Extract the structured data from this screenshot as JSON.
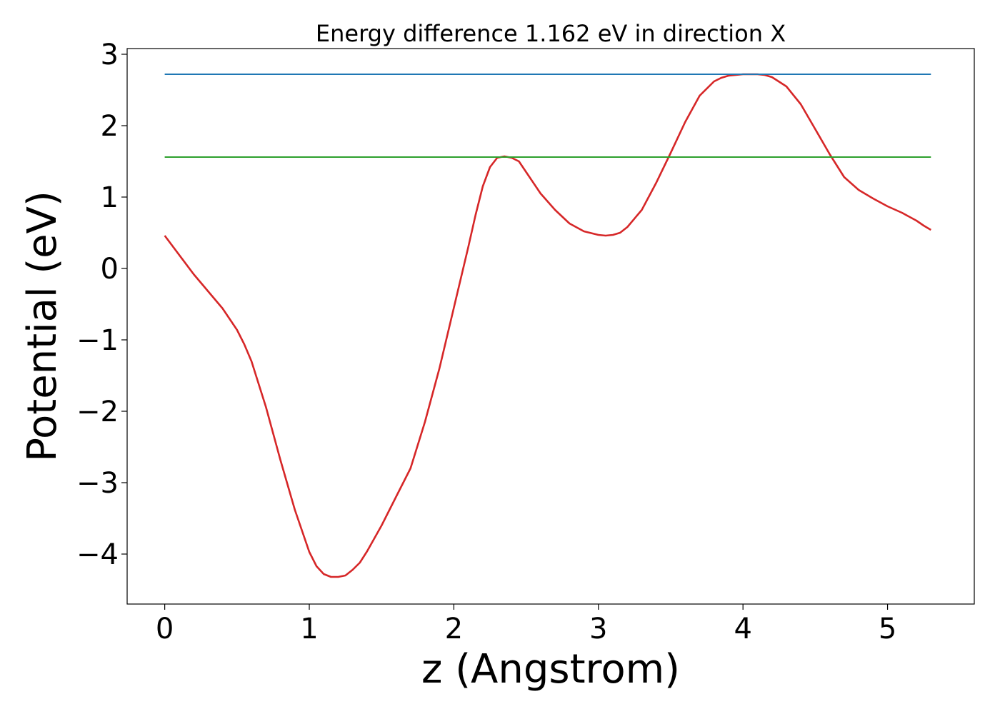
{
  "chart_data": {
    "type": "line",
    "title": "Energy difference 1.162 eV in direction X",
    "xlabel": "z (Angstrom)",
    "ylabel": "Potential (eV)",
    "xlim": [
      -0.26,
      5.6
    ],
    "ylim": [
      -4.7,
      3.08
    ],
    "xticks": [
      0,
      1,
      2,
      3,
      4,
      5
    ],
    "yticks": [
      3,
      2,
      1,
      0,
      -1,
      -2,
      -3,
      -4
    ],
    "xtick_labels": [
      "0",
      "1",
      "2",
      "3",
      "4",
      "5"
    ],
    "ytick_labels": [
      "3",
      "2",
      "1",
      "0",
      "−1",
      "−2",
      "−3",
      "−4"
    ],
    "grid": false,
    "legend": "none",
    "series": [
      {
        "color": "#d62728",
        "x": [
          0,
          0.2,
          0.4,
          0.5,
          0.55,
          0.6,
          0.7,
          0.8,
          0.9,
          1.0,
          1.05,
          1.1,
          1.15,
          1.2,
          1.25,
          1.3,
          1.35,
          1.4,
          1.5,
          1.6,
          1.7,
          1.8,
          1.9,
          2.0,
          2.1,
          2.15,
          2.2,
          2.25,
          2.3,
          2.35,
          2.4,
          2.45,
          2.5,
          2.6,
          2.7,
          2.8,
          2.9,
          3.0,
          3.05,
          3.1,
          3.15,
          3.2,
          3.3,
          3.4,
          3.5,
          3.6,
          3.7,
          3.8,
          3.85,
          3.9,
          3.95,
          4.0,
          4.05,
          4.1,
          4.15,
          4.2,
          4.3,
          4.4,
          4.5,
          4.6,
          4.7,
          4.8,
          4.9,
          5.0,
          5.1,
          5.2,
          5.25,
          5.3
        ],
        "y": [
          0.46,
          -0.08,
          -0.56,
          -0.86,
          -1.06,
          -1.3,
          -1.94,
          -2.68,
          -3.38,
          -3.97,
          -4.17,
          -4.28,
          -4.32,
          -4.32,
          -4.3,
          -4.22,
          -4.12,
          -3.96,
          -3.6,
          -3.2,
          -2.8,
          -2.15,
          -1.4,
          -0.55,
          0.3,
          0.75,
          1.15,
          1.42,
          1.55,
          1.57,
          1.55,
          1.5,
          1.35,
          1.05,
          0.82,
          0.63,
          0.52,
          0.47,
          0.46,
          0.47,
          0.5,
          0.58,
          0.82,
          1.2,
          1.62,
          2.05,
          2.42,
          2.62,
          2.67,
          2.7,
          2.71,
          2.72,
          2.72,
          2.72,
          2.71,
          2.68,
          2.55,
          2.3,
          1.95,
          1.6,
          1.28,
          1.1,
          0.98,
          0.87,
          0.78,
          0.67,
          0.6,
          0.54
        ]
      },
      {
        "color": "#1f77b4",
        "x": [
          0,
          5.3
        ],
        "y": [
          2.72,
          2.72
        ]
      },
      {
        "color": "#2ca02c",
        "x": [
          0,
          5.3
        ],
        "y": [
          1.56,
          1.56
        ]
      }
    ]
  }
}
